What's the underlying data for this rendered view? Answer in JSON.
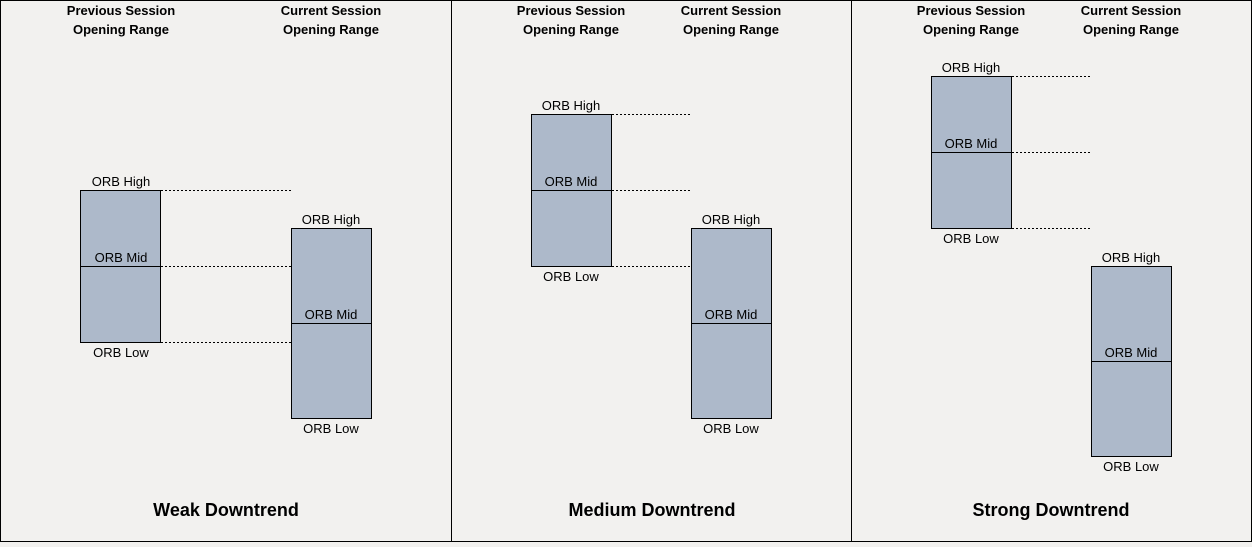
{
  "headers": {
    "previous": [
      "Previous Session",
      "Opening Range"
    ],
    "current": [
      "Current Session",
      "Opening Range"
    ]
  },
  "labels": {
    "high": "ORB High",
    "mid": "ORB Mid",
    "low": "ORB Low"
  },
  "panels": [
    {
      "title": "Weak Downtrend"
    },
    {
      "title": "Medium Downtrend"
    },
    {
      "title": "Strong Downtrend"
    }
  ],
  "colors": {
    "box_fill": "#adb9ca",
    "background": "#f2f1ef"
  }
}
